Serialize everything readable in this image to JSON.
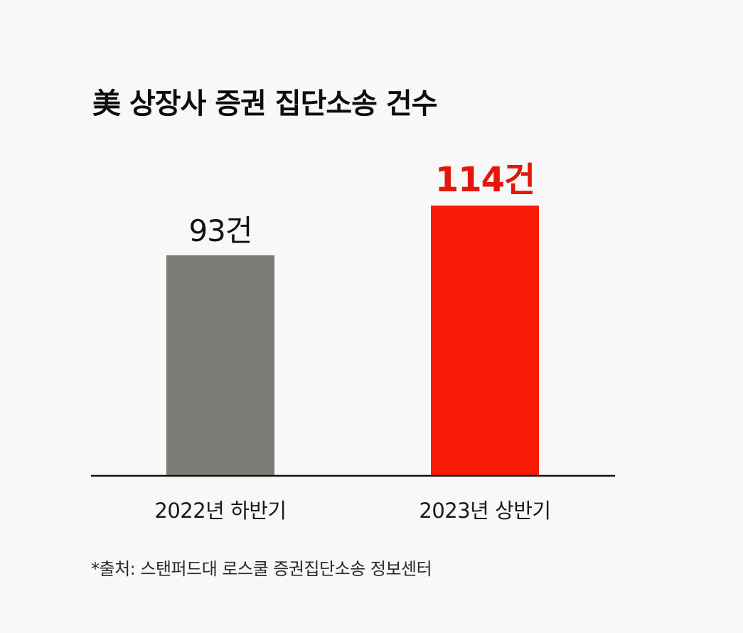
{
  "chart_data": {
    "type": "bar",
    "title": "美 상장사 증권 집단소송 건수",
    "categories": [
      "2022년 하반기",
      "2023년 상반기"
    ],
    "values": [
      93,
      114
    ],
    "value_labels": [
      "93건",
      "114건"
    ],
    "colors": [
      "#7d7d78",
      "#fa1b06"
    ],
    "value_label_colors": [
      "#111111",
      "#e3170b"
    ],
    "ylim": [
      0,
      114
    ],
    "grid": false,
    "legend": "none"
  },
  "source": "*출처: 스탠퍼드대 로스쿨 증권집단소송 정보센터"
}
